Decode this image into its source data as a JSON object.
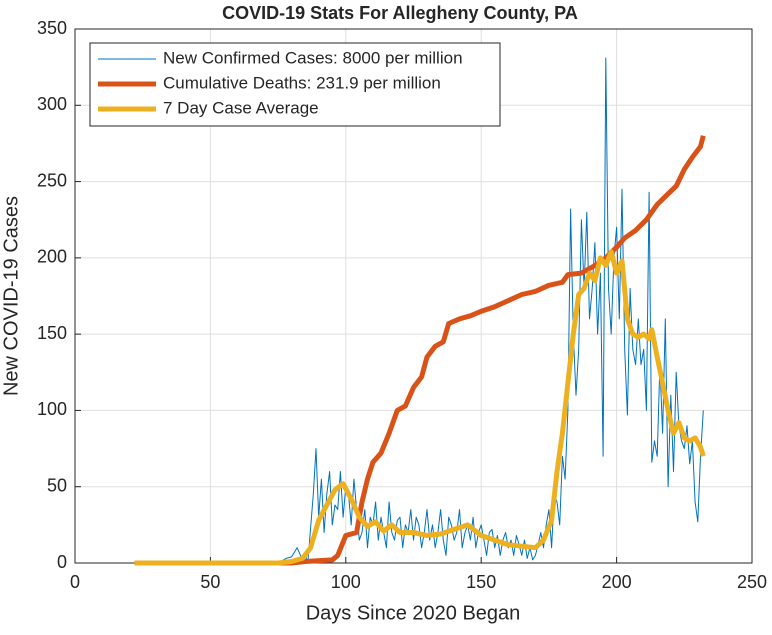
{
  "chart_data": {
    "type": "line",
    "title": "COVID-19 Stats For Allegheny County, PA",
    "xlabel": "Days Since 2020 Began",
    "ylabel": "New COVID-19 Cases",
    "xlim": [
      0,
      250
    ],
    "xticks": [
      0,
      50,
      100,
      150,
      200,
      250
    ],
    "ylim": [
      0,
      350
    ],
    "yticks": [
      0,
      50,
      100,
      150,
      200,
      250,
      300,
      350
    ],
    "grid": true,
    "legend": "upper-left",
    "series": [
      {
        "name": "New Confirmed Cases: 8000 per million",
        "color": "#0072BD",
        "width": 1,
        "x": [
          22,
          70,
          74,
          76,
          78,
          80,
          82,
          84,
          85,
          86,
          88,
          89,
          90,
          91,
          92,
          93,
          94,
          95,
          96,
          97,
          98,
          99,
          100,
          101,
          102,
          103,
          104,
          105,
          106,
          107,
          108,
          109,
          110,
          111,
          112,
          113,
          114,
          115,
          116,
          117,
          118,
          119,
          120,
          121,
          122,
          123,
          124,
          125,
          126,
          127,
          128,
          129,
          130,
          131,
          132,
          133,
          134,
          135,
          136,
          137,
          138,
          139,
          140,
          141,
          142,
          143,
          144,
          145,
          146,
          147,
          148,
          149,
          150,
          151,
          152,
          153,
          154,
          155,
          156,
          157,
          158,
          159,
          160,
          161,
          162,
          163,
          164,
          165,
          166,
          167,
          168,
          169,
          170,
          171,
          172,
          173,
          174,
          175,
          176,
          177,
          178,
          179,
          180,
          181,
          182,
          183,
          184,
          185,
          186,
          187,
          188,
          189,
          190,
          191,
          192,
          193,
          194,
          195,
          196,
          197,
          198,
          199,
          200,
          201,
          202,
          203,
          204,
          205,
          206,
          207,
          208,
          209,
          210,
          211,
          212,
          213,
          214,
          215,
          216,
          217,
          218,
          219,
          220,
          221,
          222,
          223,
          224,
          225,
          226,
          227,
          228,
          229,
          230,
          231,
          232
        ],
        "values": [
          0,
          0,
          0,
          1,
          3,
          4,
          10,
          2,
          5,
          1,
          45,
          75,
          30,
          55,
          20,
          45,
          60,
          25,
          38,
          35,
          60,
          30,
          50,
          45,
          25,
          55,
          35,
          15,
          20,
          35,
          10,
          30,
          25,
          40,
          15,
          30,
          20,
          10,
          40,
          20,
          15,
          28,
          30,
          10,
          25,
          20,
          35,
          15,
          30,
          25,
          10,
          20,
          35,
          15,
          25,
          10,
          20,
          35,
          15,
          5,
          30,
          25,
          15,
          20,
          35,
          10,
          20,
          25,
          15,
          30,
          10,
          20,
          25,
          15,
          5,
          20,
          22,
          10,
          18,
          5,
          15,
          20,
          10,
          15,
          5,
          18,
          12,
          5,
          15,
          3,
          10,
          2,
          5,
          12,
          20,
          10,
          25,
          35,
          10,
          45,
          40,
          25,
          70,
          55,
          100,
          232,
          150,
          110,
          140,
          225,
          180,
          230,
          160,
          180,
          210,
          150,
          190,
          70,
          331,
          180,
          150,
          200,
          220,
          160,
          245,
          140,
          97,
          180,
          140,
          130,
          160,
          130,
          140,
          100,
          243,
          66,
          80,
          70,
          130,
          85,
          160,
          50,
          110,
          60,
          125,
          90,
          80,
          75,
          90,
          65,
          80,
          40,
          27,
          70,
          100
        ]
      },
      {
        "name": "Cumulative Deaths: 231.9 per million",
        "color": "#D95319",
        "width": 5,
        "x": [
          22,
          80,
          85,
          95,
          97,
          100,
          104,
          106,
          108,
          110,
          113,
          116,
          119,
          122,
          125,
          128,
          130,
          133,
          136,
          138,
          142,
          146,
          150,
          155,
          160,
          165,
          170,
          175,
          180,
          182,
          187,
          192,
          196,
          200,
          203,
          207,
          211,
          215,
          219,
          222,
          225,
          228,
          231,
          232
        ],
        "values": [
          0,
          0,
          1,
          2,
          5,
          18,
          20,
          40,
          55,
          66,
          72,
          85,
          100,
          103,
          115,
          122,
          135,
          142,
          145,
          157,
          160,
          162,
          165,
          168,
          172,
          176,
          178,
          182,
          184,
          189,
          190,
          195,
          200,
          207,
          213,
          218,
          225,
          235,
          242,
          247,
          258,
          266,
          273,
          280
        ]
      },
      {
        "name": "7 Day Case Average",
        "color": "#EDB120",
        "width": 5,
        "x": [
          22,
          75,
          80,
          84,
          87,
          90,
          93,
          96,
          99,
          102,
          105,
          108,
          111,
          114,
          117,
          120,
          125,
          130,
          135,
          140,
          145,
          150,
          155,
          160,
          165,
          170,
          173,
          176,
          178,
          180,
          182,
          184,
          186,
          188,
          190,
          192,
          194,
          196,
          198,
          200,
          202,
          204,
          206,
          208,
          210,
          212,
          213,
          215,
          217,
          219,
          221,
          223,
          225,
          227,
          229,
          231,
          232
        ],
        "values": [
          0,
          0,
          1,
          3,
          10,
          28,
          38,
          48,
          52,
          42,
          30,
          24,
          27,
          21,
          25,
          20,
          20,
          18,
          19,
          22,
          25,
          18,
          15,
          12,
          11,
          10,
          15,
          28,
          60,
          85,
          118,
          150,
          176,
          180,
          190,
          185,
          200,
          195,
          204,
          190,
          198,
          160,
          150,
          148,
          150,
          147,
          153,
          135,
          118,
          100,
          85,
          92,
          82,
          80,
          82,
          76,
          70
        ]
      }
    ]
  }
}
